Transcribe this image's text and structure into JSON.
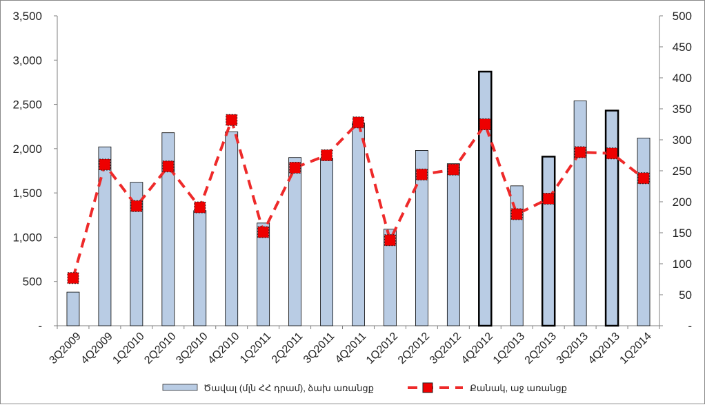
{
  "chart_data": {
    "type": "bar",
    "categories": [
      "3Q2009",
      "4Q2009",
      "1Q2010",
      "2Q2010",
      "3Q2010",
      "4Q2010",
      "1Q2011",
      "2Q2011",
      "3Q2011",
      "4Q2011",
      "1Q2012",
      "2Q2012",
      "3Q2012",
      "4Q2012",
      "1Q2013",
      "2Q2013",
      "3Q2013",
      "4Q2013",
      "1Q2014"
    ],
    "series": [
      {
        "name": "Ծավալ (մլն ՀՀ դրամ), ձախ առանցք",
        "type": "bar",
        "axis": "left",
        "color": "#b9cce4",
        "values": [
          380,
          2020,
          1620,
          2180,
          1300,
          2190,
          1160,
          1900,
          1890,
          2290,
          1090,
          1980,
          1830,
          2870,
          1580,
          1910,
          2540,
          2430,
          2120
        ]
      },
      {
        "name": "Քանակ, աջ առանցք",
        "type": "line",
        "axis": "right",
        "color": "#ee2a2a",
        "values": [
          77,
          260,
          193,
          257,
          191,
          332,
          151,
          255,
          275,
          328,
          138,
          244,
          252,
          325,
          180,
          205,
          280,
          278,
          238
        ]
      }
    ],
    "y_left": {
      "min": 0,
      "max": 3500,
      "step": 500,
      "tick_labels": [
        "-",
        "500",
        "1,000",
        "1,500",
        "2,000",
        "2,500",
        "3,000",
        "3,500"
      ]
    },
    "y_right": {
      "min": 0,
      "max": 500,
      "step": 50,
      "tick_labels": [
        "-",
        "50",
        "100",
        "150",
        "200",
        "250",
        "300",
        "350",
        "400",
        "450",
        "500"
      ]
    },
    "highlighted_bars": [
      "4Q2012",
      "2Q2013",
      "4Q2013"
    ],
    "legend_position": "bottom",
    "grid": false
  }
}
